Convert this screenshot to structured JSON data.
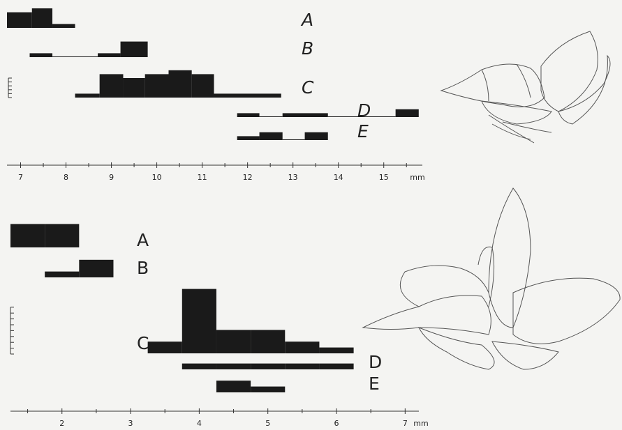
{
  "chart_data": [
    {
      "type": "histogram",
      "x_label": "mm",
      "color": "#1a1a1a",
      "xlim": [
        6.7,
        15.85
      ],
      "xticks": [
        7,
        8,
        9,
        10,
        11,
        12,
        13,
        14,
        15
      ],
      "minor_xticks": [
        7.5,
        8.5,
        9.5,
        10.5,
        11.5,
        12.5,
        13.5,
        14.5,
        15.5
      ],
      "series": [
        {
          "name": "A",
          "bins": [
            6.7,
            7.25,
            7.7,
            8.2
          ],
          "values": [
            4,
            5,
            1
          ]
        },
        {
          "name": "B",
          "bins": [
            7.2,
            7.7,
            8.7,
            9.2,
            9.8
          ],
          "values": [
            1,
            0,
            1,
            4
          ]
        },
        {
          "name": "C",
          "bins": [
            8.2,
            8.74,
            9.26,
            9.74,
            10.26,
            10.77,
            11.26,
            12.74
          ],
          "values": [
            1,
            6,
            5,
            6,
            7,
            6,
            1
          ]
        },
        {
          "name": "D",
          "bins": [
            11.77,
            12.26,
            12.77,
            13.77,
            15.26,
            15.77
          ],
          "values": [
            1,
            0,
            1,
            0,
            2
          ]
        },
        {
          "name": "E",
          "bins": [
            11.77,
            12.26,
            12.77,
            13.26,
            13.77
          ],
          "values": [
            1,
            2,
            0,
            2
          ]
        }
      ]
    },
    {
      "type": "histogram",
      "x_label": "mm",
      "color": "#1a1a1a",
      "xlim": [
        1.25,
        7.2
      ],
      "xticks": [
        2,
        3,
        4,
        5,
        6,
        7
      ],
      "minor_xticks": [
        1.5,
        2.5,
        3.5,
        4.5,
        5.5,
        6.5
      ],
      "series": [
        {
          "name": "A",
          "bins": [
            1.25,
            1.75,
            2.25
          ],
          "values": [
            4,
            4
          ]
        },
        {
          "name": "B",
          "bins": [
            1.75,
            2.25,
            2.75
          ],
          "values": [
            1,
            3
          ]
        },
        {
          "name": "C",
          "bins": [
            3.25,
            3.75,
            4.25,
            4.75,
            5.25,
            5.75,
            6.25
          ],
          "values": [
            2,
            11,
            4,
            4,
            2,
            1
          ]
        },
        {
          "name": "D",
          "bins": [
            3.75,
            4.25,
            4.75,
            5.25,
            5.75,
            6.25
          ],
          "values": [
            1,
            1,
            1,
            1,
            1
          ]
        },
        {
          "name": "E",
          "bins": [
            4.25,
            4.75,
            5.25
          ],
          "values": [
            2,
            1
          ]
        }
      ]
    }
  ]
}
